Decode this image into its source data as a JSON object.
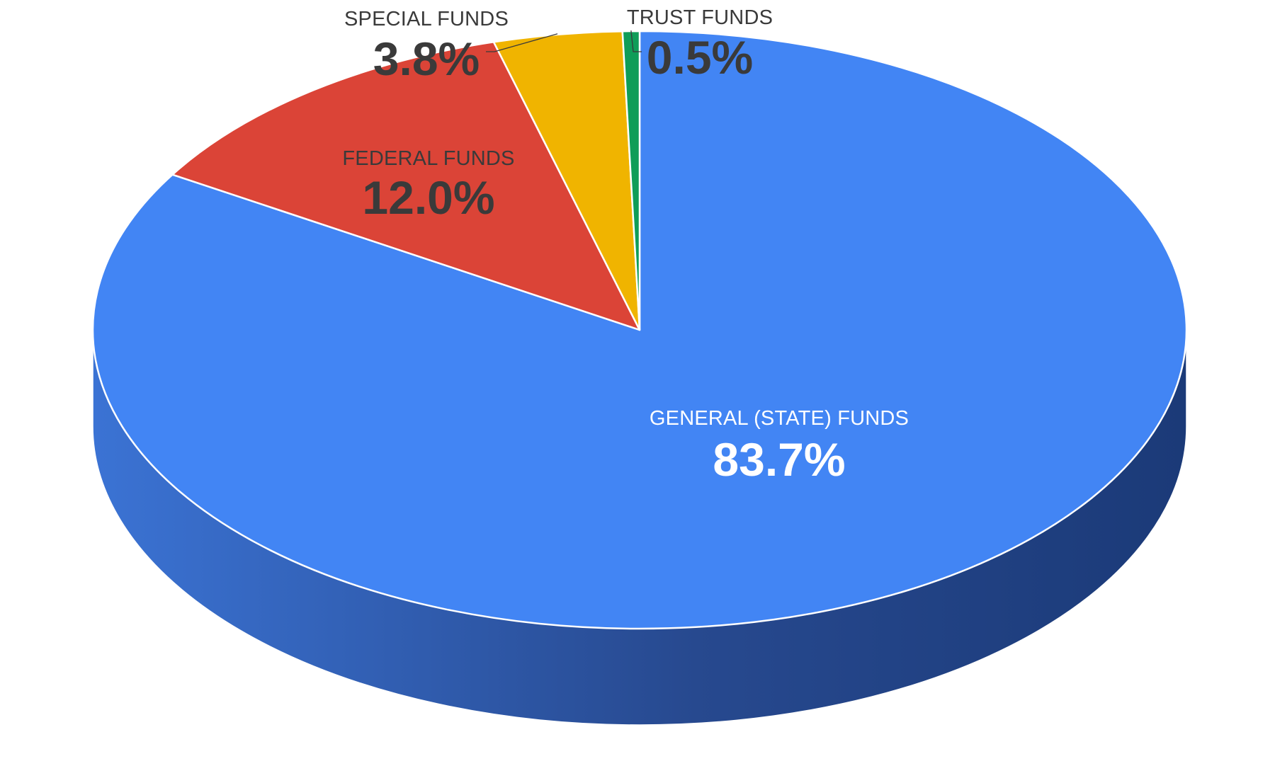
{
  "chart_data": {
    "type": "pie",
    "style": "3d",
    "start_angle_deg": 0,
    "direction": "clockwise",
    "title": "",
    "legend": "none",
    "slices": [
      {
        "label": "GENERAL (STATE) FUNDS",
        "value": 83.7,
        "display": "83.7%",
        "color": "#4285f4",
        "side_dark": "#1b3a78",
        "side_light": "#3b73d4",
        "text_color": "#ffffff"
      },
      {
        "label": "FEDERAL FUNDS",
        "value": 12.0,
        "display": "12.0%",
        "color": "#db4437",
        "side_dark": "#8a241b",
        "side_light": "#b8352a",
        "text_color": "#3a3a3a"
      },
      {
        "label": "SPECIAL FUNDS",
        "value": 3.8,
        "display": "3.8%",
        "color": "#f0b400",
        "side_dark": "#a07800",
        "side_light": "#c89500",
        "text_color": "#3a3a3a"
      },
      {
        "label": "TRUST FUNDS",
        "value": 0.5,
        "display": "0.5%",
        "color": "#0f9d58",
        "side_dark": "#0a6b3b",
        "side_light": "#0c8049",
        "text_color": "#3a3a3a"
      }
    ]
  }
}
